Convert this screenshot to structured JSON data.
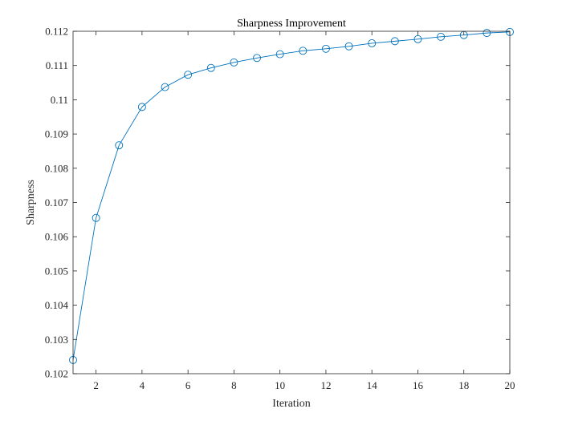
{
  "chart_data": {
    "type": "line",
    "title": "Sharpness Improvement",
    "xlabel": "Iteration",
    "ylabel": "Sharpness",
    "xlim": [
      1,
      20
    ],
    "ylim": [
      0.102,
      0.112
    ],
    "xticks": [
      2,
      4,
      6,
      8,
      10,
      12,
      14,
      16,
      18,
      20
    ],
    "xtick_labels": [
      "2",
      "4",
      "6",
      "8",
      "10",
      "12",
      "14",
      "16",
      "18",
      "20"
    ],
    "yticks": [
      0.102,
      0.103,
      0.104,
      0.105,
      0.106,
      0.107,
      0.108,
      0.109,
      0.11,
      0.111,
      0.112
    ],
    "ytick_labels": [
      "0.102",
      "0.103",
      "0.104",
      "0.105",
      "0.106",
      "0.107",
      "0.108",
      "0.109",
      "0.11",
      "0.111",
      "0.112"
    ],
    "grid": false,
    "marker": "circle",
    "line_color": "#0072BD",
    "series": [
      {
        "x": [
          1,
          2,
          3,
          4,
          5,
          6,
          7,
          8,
          9,
          10,
          11,
          12,
          13,
          14,
          15,
          16,
          17,
          18,
          19,
          20
        ],
        "values": [
          0.1024,
          0.10655,
          0.10867,
          0.10979,
          0.11037,
          0.11073,
          0.11093,
          0.11109,
          0.11122,
          0.11133,
          0.11143,
          0.11149,
          0.11156,
          0.11165,
          0.11171,
          0.11177,
          0.11184,
          0.11189,
          0.11195,
          0.11198
        ]
      }
    ]
  }
}
